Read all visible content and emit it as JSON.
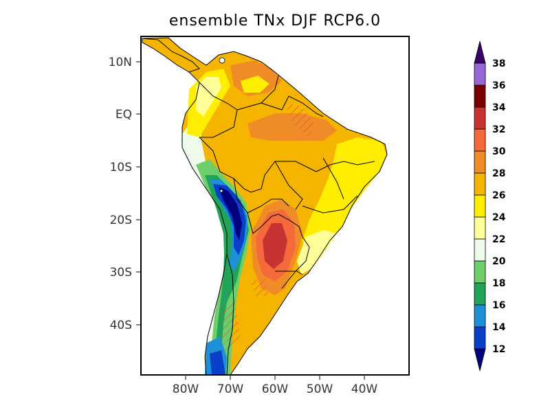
{
  "title": "ensemble TNx DJF RCP6.0",
  "map": {
    "region": "South America",
    "lat_ticks": [
      "10N",
      "EQ",
      "10S",
      "20S",
      "30S",
      "40S"
    ],
    "lon_ticks": [
      "80W",
      "70W",
      "60W",
      "50W",
      "40W"
    ]
  },
  "colorbar": {
    "levels": [
      "12",
      "14",
      "16",
      "18",
      "20",
      "22",
      "24",
      "26",
      "28",
      "30",
      "32",
      "34",
      "36",
      "38"
    ],
    "colors": [
      "#00007f",
      "#0a3fc8",
      "#1e90d8",
      "#21a35a",
      "#6ccf6a",
      "#eefaea",
      "#ffff99",
      "#ffee00",
      "#f5b400",
      "#f08c28",
      "#f56a3a",
      "#c83232",
      "#7a0000",
      "#9966d8",
      "#3a006a"
    ],
    "under_color": "#00007f",
    "over_color": "#3a006a"
  },
  "colors": {
    "land_base": "#f5b400",
    "ocean": "#ffffff",
    "hatch": "#e84040"
  }
}
